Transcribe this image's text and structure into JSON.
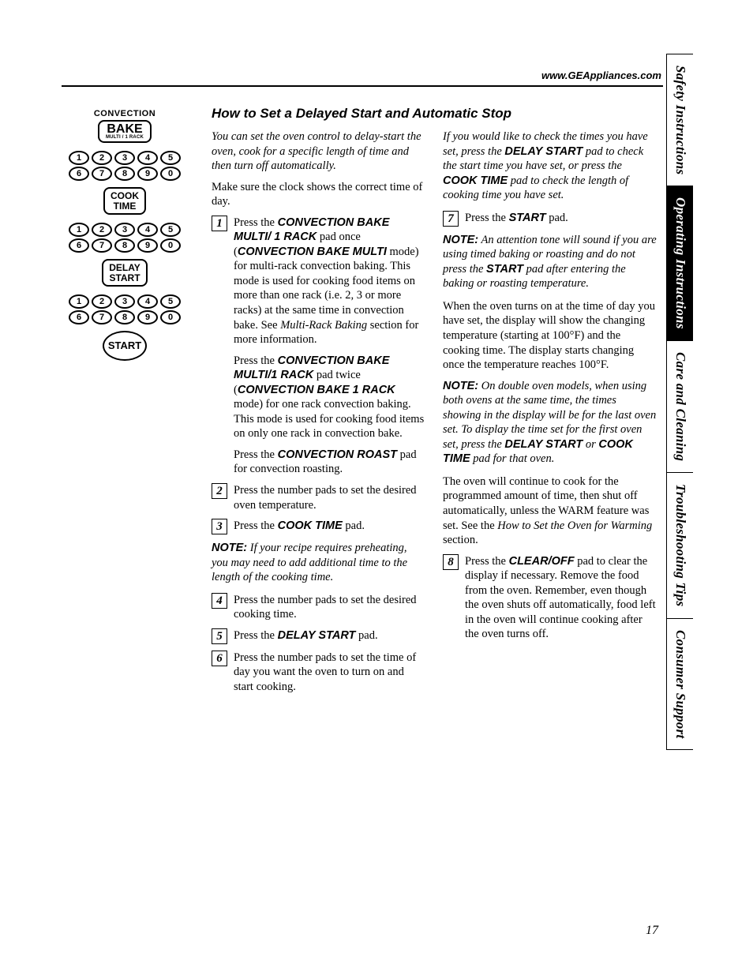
{
  "header": {
    "url": "www.GEAppliances.com"
  },
  "tabs": [
    "Safety Instructions",
    "Operating Instructions",
    "Care and Cleaning",
    "Troubleshooting Tips",
    "Consumer Support"
  ],
  "active_tab_index": 1,
  "title": "How to Set a Delayed Start and Automatic Stop",
  "panel": {
    "top_label": "CONVECTION",
    "bake_main": "BAKE",
    "bake_sub": "MULTI / 1 RACK",
    "cook_time_l1": "COOK",
    "cook_time_l2": "TIME",
    "delay_l1": "DELAY",
    "delay_l2": "START",
    "start": "START",
    "row1": [
      "1",
      "2",
      "3",
      "4",
      "5"
    ],
    "row2": [
      "6",
      "7",
      "8",
      "9",
      "0"
    ]
  },
  "left": {
    "intro": "You can set the oven control to delay-start the oven, cook for a specific length of time and then turn off automatically.",
    "p0": "Make sure the clock shows the correct time of day.",
    "s1_a": "Press the ",
    "s1_b1": "CONVECTION BAKE MULTI/ 1 RACK",
    "s1_c": " pad once (",
    "s1_b2": "CONVECTION BAKE MULTI",
    "s1_d": " mode) for multi-rack convection baking. This mode is used for cooking food items on more than one rack (i.e. 2, 3 or more racks) at the same time in convection bake. See ",
    "s1_ref": "Multi-Rack Baking",
    "s1_e": " section for more information.",
    "s1p2_a": "Press the ",
    "s1p2_b1": "CONVECTION BAKE MULTI/1 RACK",
    "s1p2_c": " pad twice (",
    "s1p2_b2": "CONVECTION BAKE 1 RACK",
    "s1p2_d": " mode) for one rack convection baking. This mode is used for cooking food items on only one rack in convection bake.",
    "s1p3_a": "Press the ",
    "s1p3_b": "CONVECTION ROAST",
    "s1p3_c": " pad for convection roasting.",
    "s2": "Press the number pads to set the desired oven temperature.",
    "s3_a": "Press the ",
    "s3_b": "COOK TIME",
    "s3_c": " pad.",
    "note1_a": "NOTE:",
    "note1_b": " If your recipe requires preheating, you may need to add additional time to the length of the cooking time.",
    "s4": "Press the number pads to set the desired cooking time.",
    "s5_a": "Press the ",
    "s5_b": "DELAY START",
    "s5_c": " pad.",
    "s6": "Press the number pads to set the time of day you want the oven to turn on and start cooking."
  },
  "right": {
    "p1_a": "If you would like to check the times you have set, press the ",
    "p1_b1": "DELAY START",
    "p1_c": " pad to check the start time you have set, or press the ",
    "p1_b2": "COOK TIME",
    "p1_d": " pad to check the length of cooking time you have set.",
    "s7_a": "Press the ",
    "s7_b": "START",
    "s7_c": " pad.",
    "note2_a": "NOTE:",
    "note2_b": " An attention tone will sound if you are using timed baking or roasting and do not press the ",
    "note2_b1": "START",
    "note2_c": " pad after entering the baking or roasting temperature.",
    "p3": "When the oven turns on at the time of day you have set, the display will show the changing temperature (starting at 100°F) and the cooking time. The display starts changing once the temperature reaches 100°F.",
    "note3_a": "NOTE:",
    "note3_b": " On double oven models, when using both ovens at the same time, the times showing in the display will be for the last oven set. To display the time set for the first oven set, press the ",
    "note3_b1": "DELAY START",
    "note3_c": "  or ",
    "note3_b2": "COOK TIME",
    "note3_d": " pad for that oven.",
    "p5_a": "The oven will continue to cook for the programmed amount of time, then shut off automatically, unless the WARM feature was set. See the ",
    "p5_ref": "How to Set the Oven for Warming",
    "p5_b": " section.",
    "s8_a": "Press the ",
    "s8_b": "CLEAR/OFF",
    "s8_c": " pad to clear the display if necessary. Remove the food from the oven. Remember, even though the oven shuts off automatically, food left in the oven will continue cooking after the oven turns off."
  },
  "page_number": "17"
}
